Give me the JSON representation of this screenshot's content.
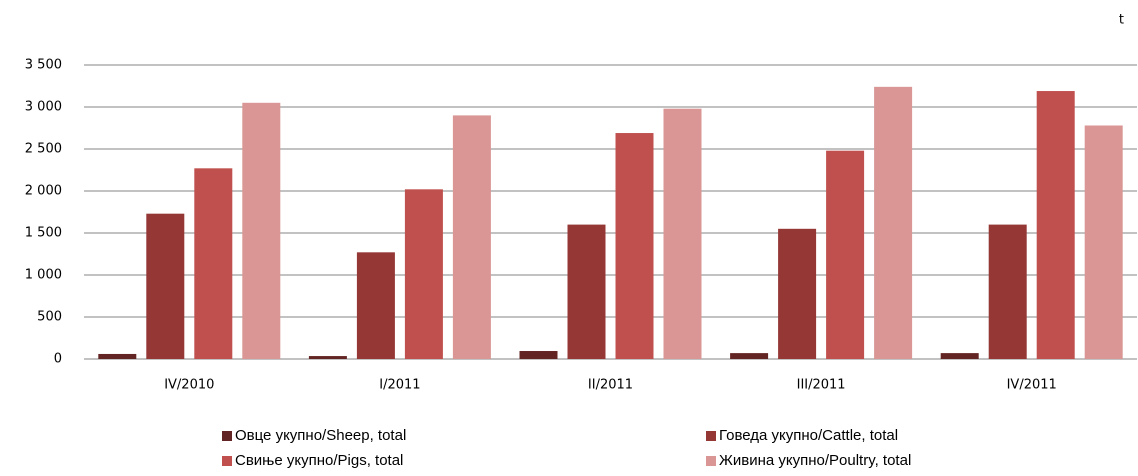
{
  "chart_data": {
    "type": "bar",
    "unit_label": "t",
    "categories": [
      "IV/2010",
      "I/2011",
      "II/2011",
      "III/2011",
      "IV/2011"
    ],
    "series": [
      {
        "name": "Овце укупно/Sheep, total",
        "color": "#632523",
        "values": [
          60,
          35,
          95,
          70,
          70
        ]
      },
      {
        "name": "Говеда укупно/Cattle, total",
        "color": "#953735",
        "values": [
          1730,
          1270,
          1600,
          1550,
          1600
        ]
      },
      {
        "name": "Свиње укупно/Pigs, total",
        "color": "#c0504d",
        "values": [
          2270,
          2020,
          2690,
          2480,
          3190
        ]
      },
      {
        "name": "Живина укупно/Poultry, total",
        "color": "#d99694",
        "values": [
          3050,
          2900,
          2980,
          3240,
          2780
        ]
      }
    ],
    "ylim": [
      0,
      3500
    ],
    "yticks": [
      0,
      500,
      {
        "value": 1000,
        "label": "1 000"
      },
      {
        "value": 1500,
        "label": "1 500"
      },
      {
        "value": 2000,
        "label": "2 000"
      },
      {
        "value": 2500,
        "label": "2 500"
      },
      {
        "value": 3000,
        "label": "3 000"
      },
      {
        "value": 3500,
        "label": "3 500"
      }
    ],
    "grid": true
  }
}
